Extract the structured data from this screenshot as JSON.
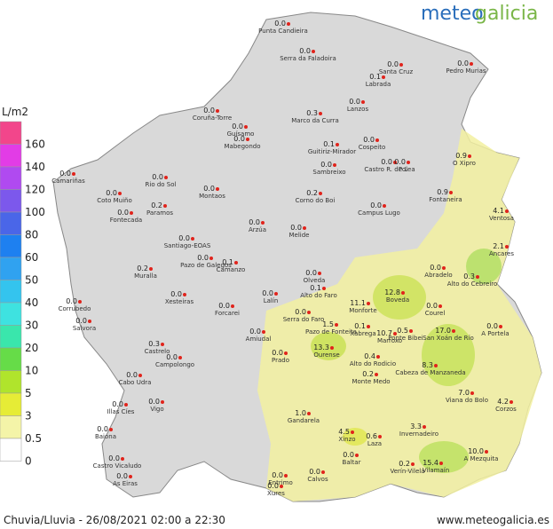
{
  "logo": {
    "part1": "meteo",
    "part2": "galicia"
  },
  "legend": {
    "unit": "L/m2",
    "levels": [
      {
        "value": 160,
        "color": "#f2468b"
      },
      {
        "value": 140,
        "color": "#e23ce6"
      },
      {
        "value": 120,
        "color": "#b04af0"
      },
      {
        "value": 100,
        "color": "#7c58ec"
      },
      {
        "value": 80,
        "color": "#4a66e8"
      },
      {
        "value": 60,
        "color": "#1e80f0"
      },
      {
        "value": 50,
        "color": "#30a2f0"
      },
      {
        "value": 40,
        "color": "#34c4ee"
      },
      {
        "value": 30,
        "color": "#3ee2e0"
      },
      {
        "value": 20,
        "color": "#3ae6ac"
      },
      {
        "value": 10,
        "color": "#66dc48"
      },
      {
        "value": 5,
        "color": "#b0e42c"
      },
      {
        "value": 3,
        "color": "#e6ec36"
      },
      {
        "value": 0.5,
        "color": "#f4f4a8"
      },
      {
        "value": 0,
        "color": "#ffffff"
      }
    ]
  },
  "stations": [
    {
      "name": "Punta Candieira",
      "value": 0,
      "value_label": "0.0"
    },
    {
      "name": "Serra da Faladoira",
      "value": 0,
      "value_label": "0.0"
    },
    {
      "name": "Pedro Murias",
      "value": 0,
      "value_label": "0.0"
    },
    {
      "name": "Santa Cruz",
      "value": 0,
      "value_label": "0.0"
    },
    {
      "name": "Labrada",
      "value": 0.1,
      "value_label": "0.1"
    },
    {
      "name": "Lanzos",
      "value": 0,
      "value_label": "0.0"
    },
    {
      "name": "Marco da Curra",
      "value": 0.3,
      "value_label": "0.3"
    },
    {
      "name": "Coruña-Torre",
      "value": 0,
      "value_label": "0.0"
    },
    {
      "name": "Guísamo",
      "value": 0,
      "value_label": "0.0"
    },
    {
      "name": "Mabegondo",
      "value": 0,
      "value_label": "0.0"
    },
    {
      "name": "Guitiriz-Mirador",
      "value": 0.1,
      "value_label": "0.1"
    },
    {
      "name": "Cospeito",
      "value": 0,
      "value_label": "0.0"
    },
    {
      "name": "Sambreixo",
      "value": 0,
      "value_label": "0.0"
    },
    {
      "name": "Castro R. de Lea",
      "value": 0,
      "value_label": "0.0"
    },
    {
      "name": "Pol",
      "value": 0,
      "value_label": "0.0"
    },
    {
      "name": "O Xipro",
      "value": 0.9,
      "value_label": "0.9"
    },
    {
      "name": "Fontaneira",
      "value": 0.9,
      "value_label": "0.9"
    },
    {
      "name": "Ventosa",
      "value": 4.1,
      "value_label": "4.1"
    },
    {
      "name": "Ancares",
      "value": 2.1,
      "value_label": "2.1"
    },
    {
      "name": "Campus Lugo",
      "value": 0,
      "value_label": "0.0"
    },
    {
      "name": "Corno do Boi",
      "value": 0.2,
      "value_label": "0.2"
    },
    {
      "name": "Arzúa",
      "value": 0,
      "value_label": "0.0"
    },
    {
      "name": "Melide",
      "value": 0,
      "value_label": "0.0"
    },
    {
      "name": "Montaos",
      "value": 0,
      "value_label": "0.0"
    },
    {
      "name": "Rio do Sol",
      "value": 0,
      "value_label": "0.0"
    },
    {
      "name": "Coto Muiño",
      "value": 0,
      "value_label": "0.0"
    },
    {
      "name": "Fontecada",
      "value": 0,
      "value_label": "0.0"
    },
    {
      "name": "Paramos",
      "value": 0.2,
      "value_label": "0.2"
    },
    {
      "name": "Camariñas",
      "value": 0,
      "value_label": "0.0"
    },
    {
      "name": "Santiago-EOAS",
      "value": 0,
      "value_label": "0.0"
    },
    {
      "name": "Pazo de Galegos",
      "value": 0,
      "value_label": "0.0"
    },
    {
      "name": "Camanzo",
      "value": 0.1,
      "value_label": "0.1"
    },
    {
      "name": "Olveda",
      "value": 0,
      "value_label": "0.0"
    },
    {
      "name": "Alto do Faro",
      "value": 0.1,
      "value_label": "0.1"
    },
    {
      "name": "Serra do Faro",
      "value": 0,
      "value_label": "0.0"
    },
    {
      "name": "Boveda",
      "value": 12.8,
      "value_label": "12.8"
    },
    {
      "name": "Abradelo",
      "value": 0,
      "value_label": "0.0"
    },
    {
      "name": "Alto do Cebreiro",
      "value": 0.3,
      "value_label": "0.3"
    },
    {
      "name": "Courel",
      "value": 0,
      "value_label": "0.0"
    },
    {
      "name": "Monforte",
      "value": 11.1,
      "value_label": "11.1"
    },
    {
      "name": "Marroxo",
      "value": 10.7,
      "value_label": "10.7"
    },
    {
      "name": "Muralla",
      "value": 0.2,
      "value_label": "0.2"
    },
    {
      "name": "Xesteiras",
      "value": 0,
      "value_label": "0.0"
    },
    {
      "name": "Forcarei",
      "value": 0,
      "value_label": "0.0"
    },
    {
      "name": "Lalín",
      "value": 0,
      "value_label": "0.0"
    },
    {
      "name": "Corrubedo",
      "value": 0,
      "value_label": "0.0"
    },
    {
      "name": "Salvora",
      "value": 0,
      "value_label": "0.0"
    },
    {
      "name": "Castrelo",
      "value": 0.3,
      "value_label": "0.3"
    },
    {
      "name": "Campolongo",
      "value": 0,
      "value_label": "0.0"
    },
    {
      "name": "Amiudal",
      "value": 0,
      "value_label": "0.0"
    },
    {
      "name": "Pazo de Fonteita",
      "value": 1.5,
      "value_label": "1.5"
    },
    {
      "name": "Ourense",
      "value": 13.3,
      "value_label": "13.3"
    },
    {
      "name": "Xabrega",
      "value": 0.1,
      "value_label": "0.1"
    },
    {
      "name": "Alto do Rodicio",
      "value": 0.4,
      "value_label": "0.4"
    },
    {
      "name": "Monte Medo",
      "value": 0.2,
      "value_label": "0.2"
    },
    {
      "name": "Gandarela",
      "value": 1.0,
      "value_label": "1.0"
    },
    {
      "name": "Xinzo",
      "value": 4.5,
      "value_label": "4.5"
    },
    {
      "name": "Prado",
      "value": 0,
      "value_label": "0.0"
    },
    {
      "name": "Ponte Bibei",
      "value": 0.5,
      "value_label": "0.5"
    },
    {
      "name": "San Xoán de Río",
      "value": 17.0,
      "value_label": "17.0"
    },
    {
      "name": "Cabeza de Manzaneda",
      "value": 8.3,
      "value_label": "8.3"
    },
    {
      "name": "Viana do Bolo",
      "value": 7.0,
      "value_label": "7.0"
    },
    {
      "name": "A Portela",
      "value": 0,
      "value_label": "0.0"
    },
    {
      "name": "Corzos",
      "value": 4.2,
      "value_label": "4.2"
    },
    {
      "name": "A Mezquita",
      "value": 10.0,
      "value_label": "10.0"
    },
    {
      "name": "Laza",
      "value": 0.6,
      "value_label": "0.6"
    },
    {
      "name": "Invernadeiro",
      "value": 3.3,
      "value_label": "3.3"
    },
    {
      "name": "Verín-Vilela",
      "value": 0.2,
      "value_label": "0.2"
    },
    {
      "name": "Vilamaín",
      "value": 15.4,
      "value_label": "15.4"
    },
    {
      "name": "Vigo",
      "value": 0,
      "value_label": "0.0"
    },
    {
      "name": "Cabo Udra",
      "value": 0,
      "value_label": "0.0"
    },
    {
      "name": "Illas Cíes",
      "value": 0,
      "value_label": "0.0"
    },
    {
      "name": "Baiona",
      "value": 0,
      "value_label": "0.0"
    },
    {
      "name": "Castro Vicaludo",
      "value": 0,
      "value_label": "0.0"
    },
    {
      "name": "As Eiras",
      "value": 0,
      "value_label": "0.0"
    },
    {
      "name": "Calvos",
      "value": 0,
      "value_label": "0.0"
    },
    {
      "name": "Baltar",
      "value": 0,
      "value_label": "0.0"
    },
    {
      "name": "Entrimo",
      "value": 0,
      "value_label": "0.0"
    },
    {
      "name": "Xures",
      "value": 0,
      "value_label": "0.0"
    }
  ],
  "footer": {
    "caption": "Chuvia/Lluvia - 26/08/2021 02:00 a 22:30",
    "site": "www.meteogalicia.es"
  }
}
